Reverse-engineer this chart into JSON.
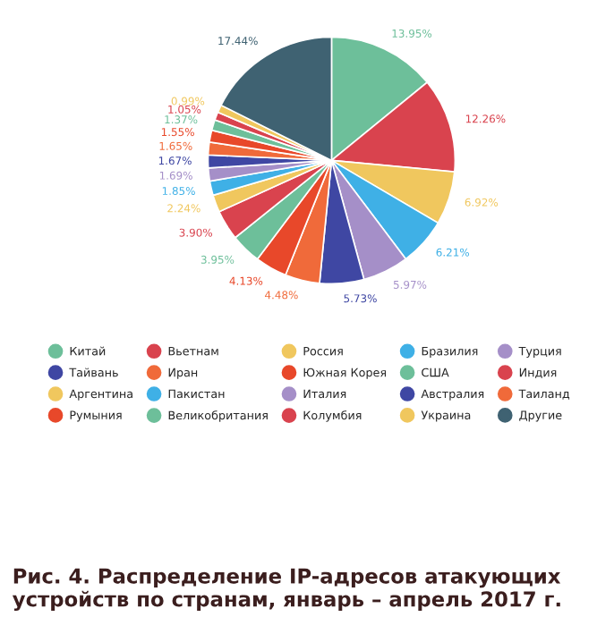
{
  "chart_data": {
    "type": "pie",
    "title": "Рис. 4. Распределение IP-адресов атакующих устройств по странам, январь – апрель 2017 г.",
    "categories": [
      "Китай",
      "Вьетнам",
      "Россия",
      "Бразилия",
      "Турция",
      "Тайвань",
      "Иран",
      "Южная Корея",
      "США",
      "Индия",
      "Аргентина",
      "Пакистан",
      "Италия",
      "Австралия",
      "Таиланд",
      "Румыния",
      "Великобритания",
      "Колумбия",
      "Украина",
      "Другие"
    ],
    "values": [
      13.95,
      12.26,
      6.92,
      6.21,
      5.97,
      5.73,
      4.48,
      4.13,
      3.95,
      3.9,
      2.24,
      1.85,
      1.69,
      1.67,
      1.65,
      1.55,
      1.37,
      1.05,
      0.99,
      17.44
    ],
    "value_labels": [
      "13.95%",
      "12.26%",
      "6.92%",
      "6.21%",
      "5.97%",
      "5.73%",
      "4.48%",
      "4.13%",
      "3.95%",
      "3.90%",
      "2.24%",
      "1.85%",
      "1.69%",
      "1.67%",
      "1.65%",
      "1.55%",
      "1.37%",
      "1.05%",
      "0.99%",
      "17.44%"
    ],
    "colors": [
      "#6dbf9a",
      "#d9434e",
      "#f0c75e",
      "#3fb0e6",
      "#a58fc8",
      "#3f47a3",
      "#f06a3a",
      "#e8482a",
      "#6dbf9a",
      "#d9434e",
      "#f0c75e",
      "#3fb0e6",
      "#a58fc8",
      "#3f47a3",
      "#f06a3a",
      "#e8482a",
      "#6dbf9a",
      "#d9434e",
      "#f0c75e",
      "#3f6272"
    ],
    "legend": "bottom"
  }
}
